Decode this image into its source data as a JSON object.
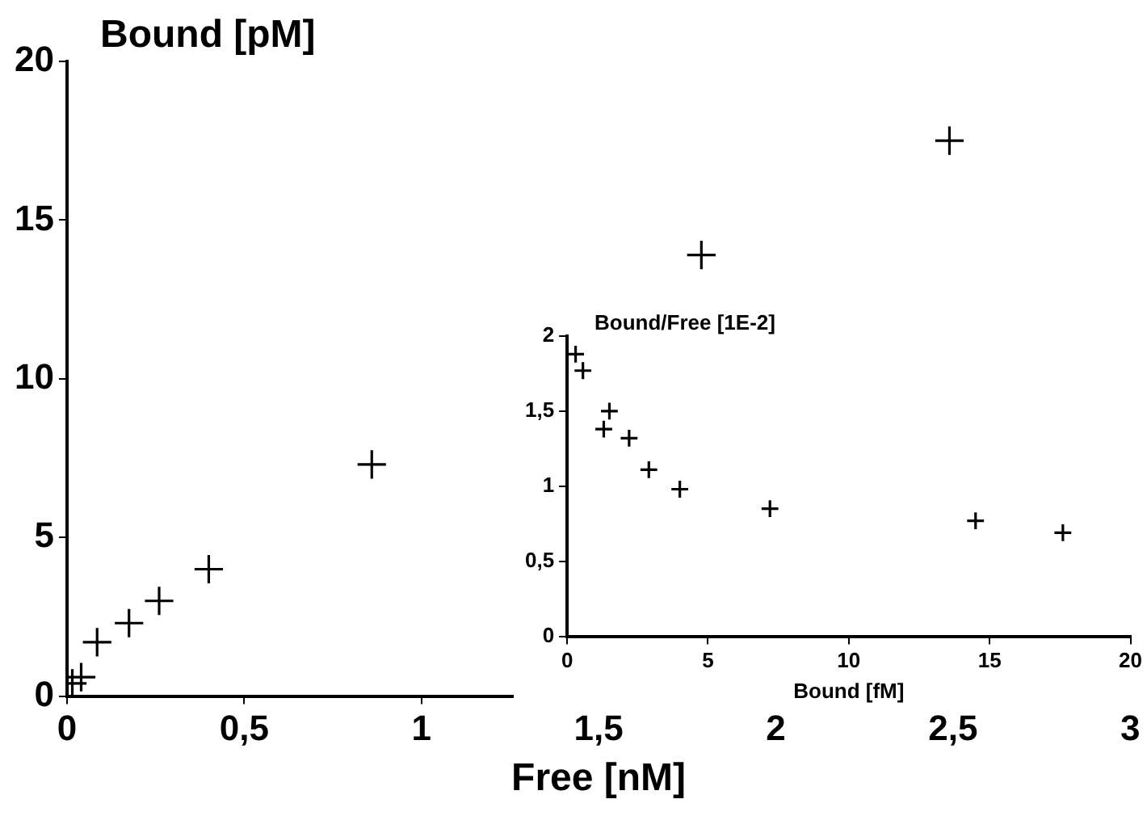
{
  "chart_data": [
    {
      "type": "scatter",
      "xlabel": "Free [nM]",
      "ylabel": "Bound [pM]",
      "marker": "cross",
      "grid": false,
      "legend": false,
      "xlim": [
        0,
        3
      ],
      "xticks": [
        0,
        {
          "value": 0.5,
          "label": "0,5"
        },
        1,
        {
          "value": 1.5,
          "label": "1,5"
        },
        2,
        {
          "value": 2.5,
          "label": "2,5"
        },
        3
      ],
      "ylim": [
        0,
        20
      ],
      "yticks": [
        0,
        5,
        10,
        15,
        20
      ],
      "series": [
        {
          "color": "#000000",
          "x": [
            0.015,
            0.04,
            0.085,
            0.175,
            0.26,
            0.4,
            0.86,
            1.79,
            2.49
          ],
          "values": [
            0.4,
            0.6,
            1.7,
            2.3,
            3.0,
            4.0,
            7.3,
            13.9,
            17.5
          ]
        }
      ]
    },
    {
      "type": "scatter",
      "xlabel": "Bound [fM]",
      "ylabel": "Bound/Free [1E-2]",
      "marker": "cross",
      "grid": false,
      "legend": false,
      "xlim": [
        0,
        20
      ],
      "xticks": [
        0,
        5,
        10,
        15,
        20
      ],
      "ylim": [
        0,
        2
      ],
      "yticks": [
        0,
        {
          "value": 0.5,
          "label": "0,5"
        },
        1,
        {
          "value": 1.5,
          "label": "1,5"
        },
        2
      ],
      "series": [
        {
          "color": "#000000",
          "x": [
            0.3,
            0.56,
            1.3,
            1.5,
            2.2,
            2.9,
            4.0,
            7.2,
            14.5,
            17.6
          ],
          "values": [
            1.88,
            1.77,
            1.38,
            1.5,
            1.32,
            1.11,
            0.98,
            0.85,
            0.77,
            0.69
          ]
        }
      ]
    }
  ]
}
